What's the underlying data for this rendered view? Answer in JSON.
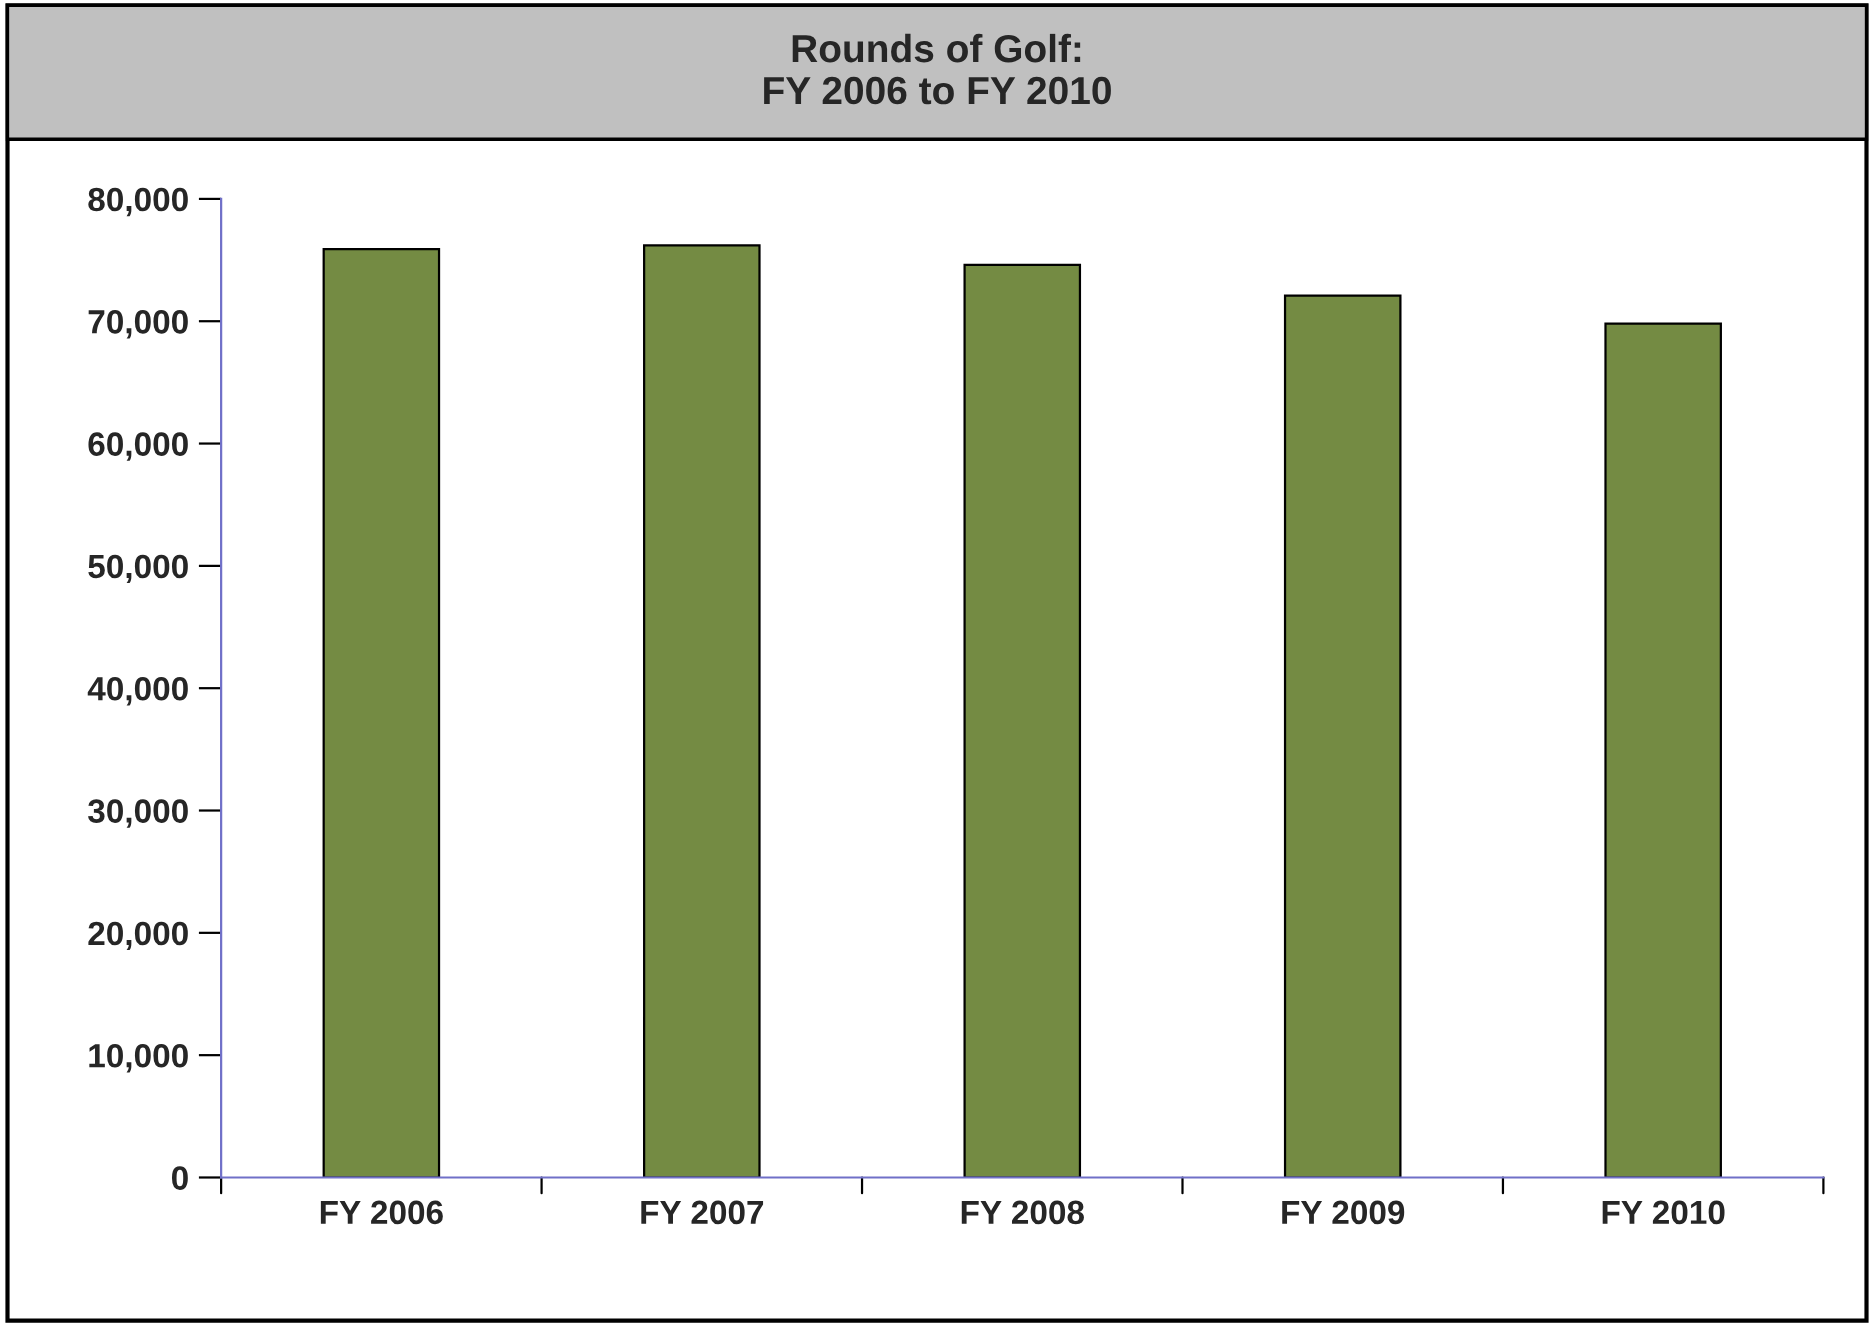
{
  "chart_data": {
    "type": "bar",
    "title": "Rounds of Golf:\nFY 2006 to FY 2010",
    "categories": [
      "FY 2006",
      "FY 2007",
      "FY 2008",
      "FY 2009",
      "FY 2010"
    ],
    "values": [
      75900,
      76200,
      74600,
      72100,
      69800
    ],
    "color": "#748b43",
    "ylim": [
      0,
      80000
    ],
    "yticks": [
      {
        "value": 0,
        "label": "0"
      },
      {
        "value": 10000,
        "label": "10,000"
      },
      {
        "value": 20000,
        "label": "20,000"
      },
      {
        "value": 30000,
        "label": "30,000"
      },
      {
        "value": 40000,
        "label": "40,000"
      },
      {
        "value": 50000,
        "label": "50,000"
      },
      {
        "value": 60000,
        "label": "60,000"
      },
      {
        "value": 70000,
        "label": "70,000"
      },
      {
        "value": 80000,
        "label": "80,000"
      }
    ],
    "grid": false,
    "legend": false
  }
}
